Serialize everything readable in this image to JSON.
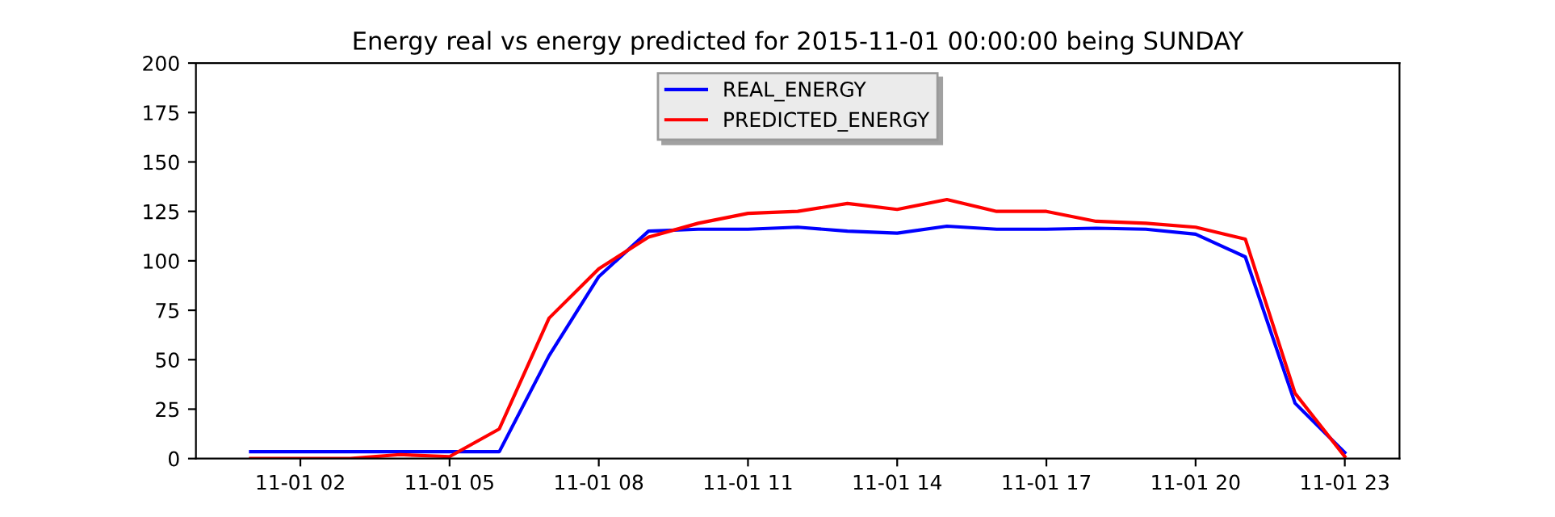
{
  "chart_data": {
    "type": "line",
    "title": "Energy real vs energy predicted for 2015-11-01 00:00:00 being SUNDAY",
    "x": [
      "2015-11-01T01:00",
      "2015-11-01T02:00",
      "2015-11-01T03:00",
      "2015-11-01T04:00",
      "2015-11-01T05:00",
      "2015-11-01T06:00",
      "2015-11-01T07:00",
      "2015-11-01T08:00",
      "2015-11-01T09:00",
      "2015-11-01T10:00",
      "2015-11-01T11:00",
      "2015-11-01T12:00",
      "2015-11-01T13:00",
      "2015-11-01T14:00",
      "2015-11-01T15:00",
      "2015-11-01T16:00",
      "2015-11-01T17:00",
      "2015-11-01T18:00",
      "2015-11-01T19:00",
      "2015-11-01T20:00",
      "2015-11-01T21:00",
      "2015-11-01T22:00",
      "2015-11-01T23:00"
    ],
    "series": [
      {
        "name": "REAL_ENERGY",
        "color": "#0000ff",
        "values": [
          3.5,
          3.5,
          3.5,
          3.5,
          3.5,
          3.5,
          52,
          92,
          115,
          116,
          116,
          117,
          115,
          114,
          117.5,
          116,
          116,
          116.5,
          116,
          113.5,
          102,
          28,
          3
        ]
      },
      {
        "name": "PREDICTED_ENERGY",
        "color": "#ff0000",
        "values": [
          0,
          0,
          0,
          2,
          1,
          15,
          71,
          96,
          112,
          119,
          124,
          125,
          129,
          126,
          131,
          125,
          125,
          120,
          119,
          117,
          111,
          33,
          1
        ]
      }
    ],
    "xlim": [
      "2015-10-31T23:54",
      "2015-11-02T00:06"
    ],
    "xticks": [
      {
        "value": "2015-11-01T02:00",
        "label": "11-01 02"
      },
      {
        "value": "2015-11-01T05:00",
        "label": "11-01 05"
      },
      {
        "value": "2015-11-01T08:00",
        "label": "11-01 08"
      },
      {
        "value": "2015-11-01T11:00",
        "label": "11-01 11"
      },
      {
        "value": "2015-11-01T14:00",
        "label": "11-01 14"
      },
      {
        "value": "2015-11-01T17:00",
        "label": "11-01 17"
      },
      {
        "value": "2015-11-01T20:00",
        "label": "11-01 20"
      },
      {
        "value": "2015-11-01T23:00",
        "label": "11-01 23"
      }
    ],
    "ylim": [
      0,
      200
    ],
    "yticks": [
      0,
      25,
      50,
      75,
      100,
      125,
      150,
      175,
      200
    ],
    "grid": false,
    "legend": "top",
    "marker": "none",
    "line_style": "solid"
  }
}
